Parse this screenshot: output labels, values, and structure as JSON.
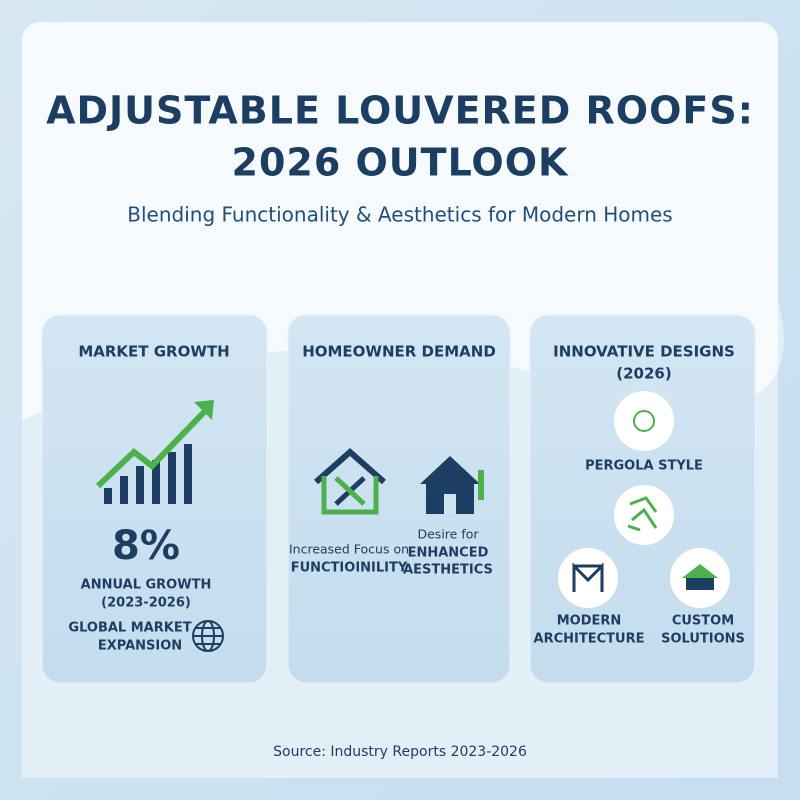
{
  "header": {
    "title_lines": [
      "ADJUSTABLE LOUVERED ROOFS:",
      "2026 OUTLOOK"
    ],
    "subtitle": "Blending Functionality & Aesthetics for Modern Homes"
  },
  "cards": [
    {
      "title": "MARKET GROWTH",
      "stat": "8%",
      "stat_label": "ANNUAL GROWTH",
      "period": "(2023-2026)",
      "note_lines": [
        "GLOBAL MARKET",
        "EXPANSION"
      ]
    },
    {
      "title": "HOMEOWNER DEMAND",
      "items": [
        {
          "lines": [
            "Increased Focus on",
            "FUNCTIOINILITY"
          ]
        },
        {
          "lines": [
            "Desire for",
            "ENHANCED",
            "AESTHETICS"
          ]
        }
      ]
    },
    {
      "title_lines": [
        "INNOVATIVE DESIGNS",
        "(2026)"
      ],
      "items": [
        {
          "lines": [
            "PERGOLA STYLE"
          ]
        },
        {
          "lines": [
            "MODERN",
            "ARCHITECTURE"
          ]
        },
        {
          "lines": [
            "CUSTOM",
            "SOLUTIONS"
          ]
        }
      ]
    }
  ],
  "footer": {
    "source": "Source: Industry Reports 2023-2026"
  }
}
